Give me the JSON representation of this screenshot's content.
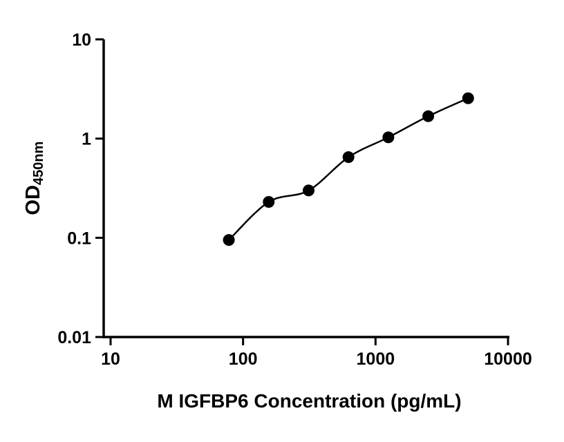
{
  "chart_data": {
    "type": "scatter",
    "title": "",
    "xlabel": "M IGFBP6 Concentration (pg/mL)",
    "ylabel_main": "OD",
    "ylabel_sub": "450nm",
    "x_scale": "log",
    "y_scale": "log",
    "xlim": [
      10,
      10000
    ],
    "ylim": [
      0.01,
      10
    ],
    "x_ticks": [
      10,
      100,
      1000,
      10000
    ],
    "x_tick_labels": [
      "10",
      "100",
      "1000",
      "10000"
    ],
    "y_ticks": [
      10,
      1,
      0.1,
      0.01
    ],
    "y_tick_labels": [
      "10",
      "1",
      "0.1",
      "0.01"
    ],
    "grid": false,
    "legend": "none",
    "marker_color": "#000000",
    "line_color": "#000000",
    "background_color": "#ffffff",
    "series": [
      {
        "x": [
          78.1,
          156.2,
          312.5,
          625,
          1250,
          2500,
          5000
        ],
        "y": [
          0.095,
          0.23,
          0.3,
          0.65,
          1.03,
          1.68,
          2.55
        ]
      }
    ]
  }
}
